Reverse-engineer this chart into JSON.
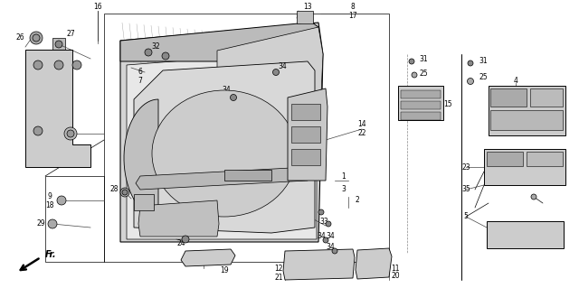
{
  "bg_color": "#ffffff",
  "line_color": "#000000",
  "gray_fill": "#c8c8c8",
  "light_gray": "#e0e0e0",
  "dark_gray": "#909090",
  "fig_width": 6.4,
  "fig_height": 3.19,
  "dpi": 100,
  "label_fs": 5.5,
  "fr_text": "Fr."
}
